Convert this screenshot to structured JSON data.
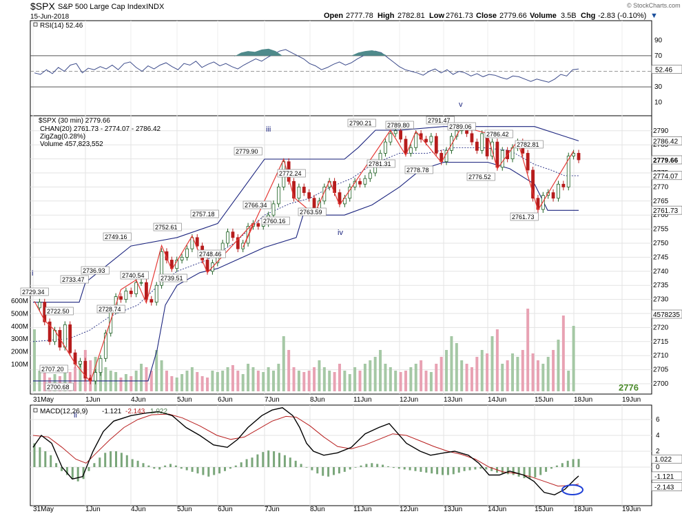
{
  "header": {
    "symbol": "$SPX",
    "name": "S&P 500 Large Cap Index",
    "exchange": "INDX",
    "date": "15-Jun-2018",
    "open_label": "Open",
    "open": "2777.78",
    "high_label": "High",
    "high": "2782.81",
    "low_label": "Low",
    "low": "2761.73",
    "close_label": "Close",
    "close": "2779.66",
    "volume_label": "Volume",
    "volume": "3.5B",
    "chg_label": "Chg",
    "chg": "-2.83 (-0.10%)",
    "chg_arrow": "▼",
    "watermark": "© StockCharts.com"
  },
  "rsi_panel": {
    "legend": "RSI(14) 52.46",
    "ticks": [
      "90",
      "70",
      "50",
      "30",
      "10"
    ],
    "last_value": "52.46"
  },
  "price_panel": {
    "legend": [
      {
        "text": "$SPX (30 min) 2779.66",
        "color": "#000000"
      },
      {
        "text": "CHAN(20) 2761.73 - 2774.07 - 2786.42",
        "color": "#1a237e"
      },
      {
        "text": "ZigZag(0.28%)",
        "color": "#d32f2f"
      },
      {
        "text": "Volume 457,823,552",
        "color": "#2e7d32"
      }
    ],
    "ticks": [
      "2790",
      "2785",
      "2780",
      "2775",
      "2770",
      "2765",
      "2760",
      "2755",
      "2750",
      "2745",
      "2740",
      "2735",
      "2730",
      "2725",
      "2720",
      "2715",
      "2710",
      "2705",
      "2700"
    ],
    "right_labels": [
      "2786.42",
      "2779.66",
      "2774.07",
      "2761.73"
    ],
    "volume_ticks": [
      "600M",
      "500M",
      "400M",
      "300M",
      "200M",
      "100M"
    ],
    "volume_right_label": "4578235",
    "wave_labels": [
      "i",
      "ii",
      "iii",
      "iv",
      "v"
    ],
    "pivots": [
      "2729.34",
      "2722.50",
      "2707.20",
      "2700.68",
      "2733.47",
      "2736.93",
      "2728.74",
      "2749.16",
      "2740.54",
      "2752.61",
      "2739.51",
      "2757.18",
      "2748.46",
      "2779.90",
      "2766.34",
      "2760.16",
      "2772.24",
      "2763.59",
      "2790.21",
      "2781.31",
      "2789.80",
      "2778.78",
      "2791.47",
      "2789.06",
      "2776.52",
      "2786.42",
      "2761.73",
      "2782.81"
    ],
    "big_label": "2776"
  },
  "macd_panel": {
    "legend_prefix": "MACD(12,26,9)",
    "macd_value": "-1.121",
    "signal_value": "-2.143",
    "hist_value": "1.022",
    "ticks": [
      "6",
      "4",
      "2",
      "0"
    ],
    "right_labels": [
      "1.022",
      "-1.121",
      "-2.143"
    ]
  },
  "x_axis": {
    "labels": [
      "31May",
      "1Jun",
      "4Jun",
      "5Jun",
      "6Jun",
      "7Jun",
      "8Jun",
      "11Jun",
      "12Jun",
      "13Jun",
      "14Jun",
      "15Jun",
      "18Jun",
      "19Jun"
    ]
  },
  "colors": {
    "up": "#2e7d32",
    "down": "#c62828",
    "zigzag": "#e53935",
    "channel": "#1a237e",
    "rsi_fill": "#4f8a8b",
    "vol_up": "#a5c8a5",
    "vol_down": "#e8a2b3",
    "macd_line": "#000000",
    "signal_line": "#b71c1c",
    "hist": "#7aa67a",
    "wave": "#1a237e",
    "big_label": "#4a8a2a"
  },
  "chart_data": {
    "type": "candlestick",
    "title": "$SPX S&P 500 Large Cap Index INDX",
    "interval": "30 min",
    "ylim": [
      2698,
      2796
    ],
    "days": [
      "31May",
      "1Jun",
      "4Jun",
      "5Jun",
      "6Jun",
      "7Jun",
      "8Jun",
      "11Jun",
      "12Jun",
      "13Jun",
      "14Jun",
      "15Jun"
    ],
    "close_path": [
      [
        0,
        2727
      ],
      [
        1,
        2729
      ],
      [
        2,
        2722
      ],
      [
        3,
        2715
      ],
      [
        4,
        2719
      ],
      [
        5,
        2713
      ],
      [
        6,
        2721
      ],
      [
        7,
        2711
      ],
      [
        8,
        2707
      ],
      [
        9,
        2708
      ],
      [
        10,
        2702
      ],
      [
        11,
        2701
      ],
      [
        12,
        2704
      ],
      [
        13,
        2709
      ],
      [
        14,
        2718
      ],
      [
        15,
        2726
      ],
      [
        16,
        2731
      ],
      [
        17,
        2730
      ],
      [
        18,
        2733
      ],
      [
        19,
        2732
      ],
      [
        20,
        2736
      ],
      [
        21,
        2736
      ],
      [
        22,
        2730
      ],
      [
        23,
        2729
      ],
      [
        24,
        2735
      ],
      [
        25,
        2747
      ],
      [
        26,
        2744
      ],
      [
        27,
        2741
      ],
      [
        28,
        2744
      ],
      [
        29,
        2745
      ],
      [
        30,
        2748
      ],
      [
        31,
        2752
      ],
      [
        32,
        2749
      ],
      [
        33,
        2744
      ],
      [
        34,
        2740
      ],
      [
        35,
        2743
      ],
      [
        36,
        2746
      ],
      [
        37,
        2750
      ],
      [
        38,
        2754
      ],
      [
        39,
        2752
      ],
      [
        40,
        2748
      ],
      [
        41,
        2750
      ],
      [
        42,
        2756
      ],
      [
        43,
        2757
      ],
      [
        44,
        2756
      ],
      [
        45,
        2757
      ],
      [
        46,
        2760
      ],
      [
        47,
        2764
      ],
      [
        48,
        2770
      ],
      [
        49,
        2779
      ],
      [
        50,
        2772
      ],
      [
        51,
        2766
      ],
      [
        52,
        2770
      ],
      [
        53,
        2768
      ],
      [
        54,
        2766
      ],
      [
        55,
        2761
      ],
      [
        56,
        2765
      ],
      [
        57,
        2770
      ],
      [
        58,
        2772
      ],
      [
        59,
        2768
      ],
      [
        60,
        2764
      ],
      [
        61,
        2766
      ],
      [
        62,
        2770
      ],
      [
        63,
        2772
      ],
      [
        64,
        2771
      ],
      [
        65,
        2773
      ],
      [
        66,
        2775
      ],
      [
        67,
        2778
      ],
      [
        68,
        2782
      ],
      [
        69,
        2786
      ],
      [
        70,
        2789
      ],
      [
        71,
        2790
      ],
      [
        72,
        2787
      ],
      [
        73,
        2782
      ],
      [
        74,
        2784
      ],
      [
        75,
        2789
      ],
      [
        76,
        2787
      ],
      [
        77,
        2786
      ],
      [
        78,
        2788
      ],
      [
        79,
        2782
      ],
      [
        80,
        2779
      ],
      [
        81,
        2783
      ],
      [
        82,
        2788
      ],
      [
        83,
        2790
      ],
      [
        84,
        2791
      ],
      [
        85,
        2789
      ],
      [
        86,
        2786
      ],
      [
        87,
        2783
      ],
      [
        88,
        2789
      ],
      [
        89,
        2781
      ],
      [
        90,
        2786
      ],
      [
        91,
        2777
      ],
      [
        92,
        2783
      ],
      [
        93,
        2780
      ],
      [
        94,
        2784
      ],
      [
        95,
        2786
      ],
      [
        96,
        2782
      ],
      [
        97,
        2776
      ],
      [
        98,
        2766
      ],
      [
        99,
        2762
      ],
      [
        100,
        2767
      ],
      [
        101,
        2768
      ],
      [
        102,
        2766
      ],
      [
        103,
        2771
      ],
      [
        104,
        2770
      ],
      [
        105,
        2781
      ],
      [
        106,
        2782
      ],
      [
        107,
        2779.66
      ]
    ],
    "zigzag": [
      [
        0,
        2729.34
      ],
      [
        2,
        2722.5
      ],
      [
        4,
        2719
      ],
      [
        8,
        2707.2
      ],
      [
        11,
        2700.68
      ],
      [
        17,
        2733.47
      ],
      [
        20,
        2736.93
      ],
      [
        22,
        2728.74
      ],
      [
        25,
        2749.16
      ],
      [
        27,
        2740.54
      ],
      [
        31,
        2752.61
      ],
      [
        34,
        2739.51
      ],
      [
        43,
        2757.18
      ],
      [
        41,
        2748.46
      ],
      [
        49,
        2779.9
      ],
      [
        51,
        2766.34
      ],
      [
        55,
        2760.16
      ],
      [
        58,
        2772.24
      ],
      [
        60,
        2763.59
      ],
      [
        70,
        2790.21
      ],
      [
        73,
        2781.31
      ],
      [
        75,
        2789.8
      ],
      [
        80,
        2778.78
      ],
      [
        84,
        2791.47
      ],
      [
        89,
        2789.06
      ],
      [
        91,
        2776.52
      ],
      [
        95,
        2786.42
      ],
      [
        99,
        2761.73
      ],
      [
        106,
        2782.81
      ]
    ],
    "channel": {
      "upper": 2786.42,
      "middle": 2774.07,
      "lower": 2761.73
    },
    "rsi": {
      "value": 52.46,
      "levels": [
        70,
        30
      ]
    },
    "macd": {
      "macd": -1.121,
      "signal": -2.143,
      "histogram": 1.022,
      "params": "12,26,9"
    }
  }
}
